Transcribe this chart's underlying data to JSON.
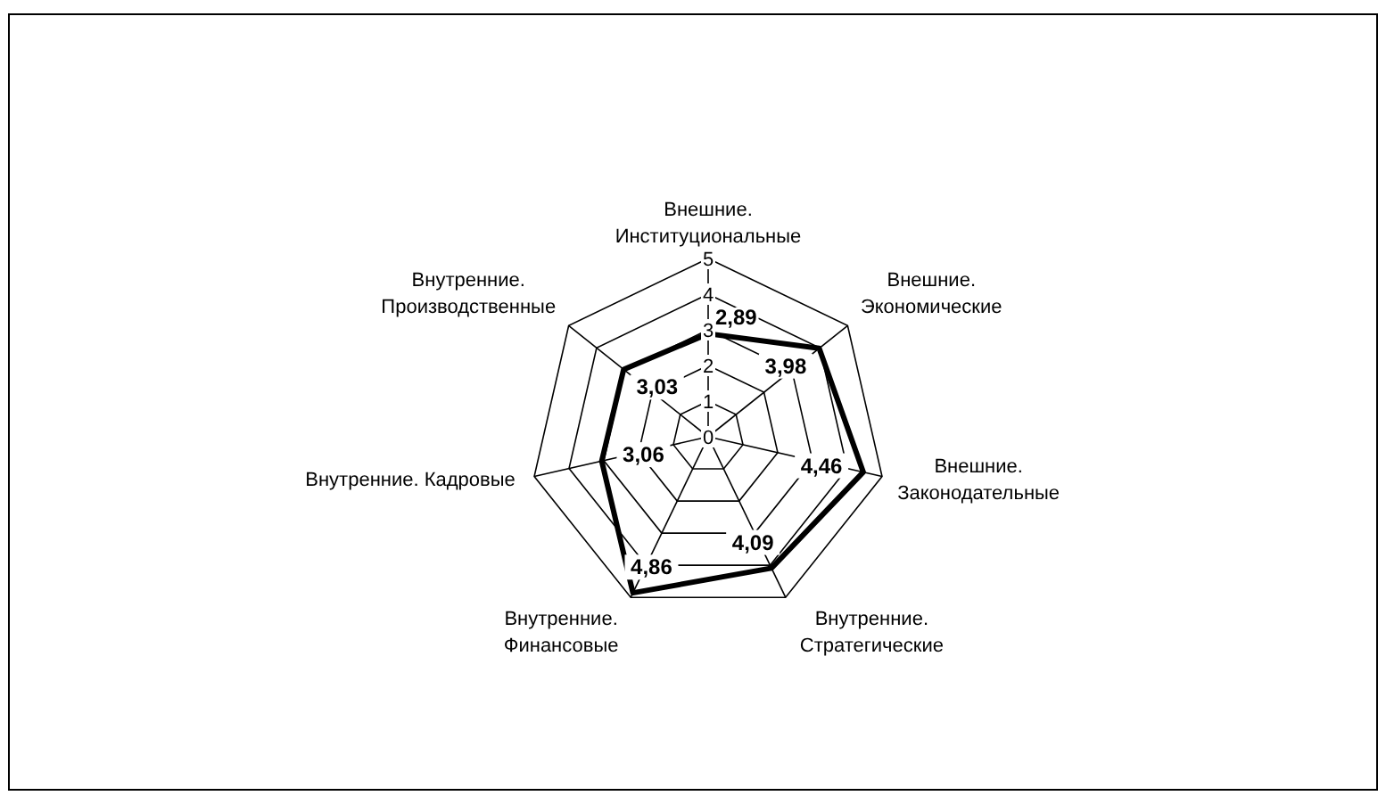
{
  "chart_data": {
    "type": "radar",
    "categories": [
      "Внешние. Институциональные",
      "Внешние. Экономические",
      "Внешние. Законодательные",
      "Внутренние. Стратегические",
      "Внутренние. Финансовые",
      "Внутренние. Кадровые",
      "Внутренние. Производственные"
    ],
    "series": [
      {
        "color": "#000000",
        "values": [
          2.89,
          3.98,
          4.46,
          4.09,
          4.86,
          3.06,
          3.03
        ],
        "value_labels": [
          "2,89",
          "3,98",
          "4,46",
          "4,09",
          "4,86",
          "3,06",
          "3,03"
        ]
      }
    ],
    "ylim": [
      0,
      5
    ],
    "yticks": [
      0,
      1,
      2,
      3,
      4,
      5
    ],
    "grid": true
  }
}
